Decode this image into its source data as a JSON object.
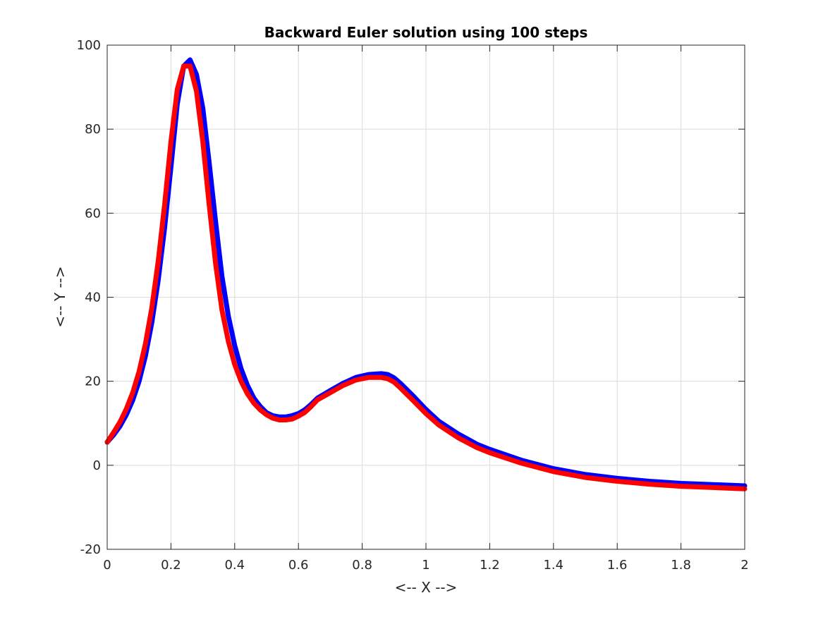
{
  "chart_data": {
    "type": "line",
    "title": "Backward Euler solution using 100 steps",
    "xlabel": "<-- X -->",
    "ylabel": "<-- Y -->",
    "xlim": [
      0,
      2
    ],
    "ylim": [
      -20,
      100
    ],
    "xticks": [
      0,
      0.2,
      0.4,
      0.6,
      0.8,
      1,
      1.2,
      1.4,
      1.6,
      1.8,
      2
    ],
    "xtick_labels": [
      "0",
      "0.2",
      "0.4",
      "0.6",
      "0.8",
      "1",
      "1.2",
      "1.4",
      "1.6",
      "1.8",
      "2"
    ],
    "yticks": [
      -20,
      0,
      20,
      40,
      60,
      80,
      100
    ],
    "ytick_labels": [
      "-20",
      "0",
      "20",
      "40",
      "60",
      "80",
      "100"
    ],
    "grid": true,
    "series": [
      {
        "color": "#0000ff",
        "x": [
          0,
          0.02,
          0.04,
          0.06,
          0.08,
          0.1,
          0.12,
          0.14,
          0.16,
          0.18,
          0.2,
          0.22,
          0.24,
          0.26,
          0.28,
          0.3,
          0.32,
          0.34,
          0.36,
          0.38,
          0.4,
          0.42,
          0.44,
          0.46,
          0.48,
          0.5,
          0.52,
          0.54,
          0.56,
          0.58,
          0.6,
          0.62,
          0.64,
          0.66,
          0.7,
          0.74,
          0.78,
          0.82,
          0.86,
          0.88,
          0.9,
          0.92,
          0.96,
          1.0,
          1.04,
          1.1,
          1.16,
          1.2,
          1.3,
          1.4,
          1.5,
          1.6,
          1.7,
          1.8,
          1.9,
          2.0
        ],
        "y": [
          5.5,
          7.2,
          9.3,
          12.0,
          15.5,
          20.0,
          26.0,
          34.0,
          44.0,
          56.5,
          71.0,
          86.0,
          95.0,
          96.5,
          93.0,
          85.0,
          72.0,
          58.0,
          45.0,
          35.5,
          28.5,
          23.0,
          19.0,
          16.0,
          14.0,
          12.5,
          11.8,
          11.5,
          11.5,
          11.8,
          12.3,
          13.2,
          14.5,
          16.0,
          17.8,
          19.5,
          20.9,
          21.6,
          21.8,
          21.6,
          20.8,
          19.5,
          16.5,
          13.3,
          10.5,
          7.5,
          5.0,
          3.8,
          1.2,
          -0.8,
          -2.2,
          -3.1,
          -3.8,
          -4.3,
          -4.6,
          -4.9
        ]
      },
      {
        "color": "#ff0000",
        "x": [
          0,
          0.02,
          0.04,
          0.06,
          0.08,
          0.1,
          0.12,
          0.14,
          0.16,
          0.18,
          0.2,
          0.22,
          0.24,
          0.26,
          0.28,
          0.3,
          0.32,
          0.34,
          0.36,
          0.38,
          0.4,
          0.42,
          0.44,
          0.46,
          0.48,
          0.5,
          0.52,
          0.54,
          0.56,
          0.58,
          0.6,
          0.62,
          0.64,
          0.66,
          0.7,
          0.74,
          0.78,
          0.82,
          0.86,
          0.88,
          0.9,
          0.92,
          0.96,
          1.0,
          1.04,
          1.1,
          1.16,
          1.2,
          1.3,
          1.4,
          1.5,
          1.6,
          1.7,
          1.8,
          1.9,
          2.0
        ],
        "y": [
          5.5,
          7.8,
          10.3,
          13.4,
          17.3,
          22.3,
          28.9,
          37.5,
          48.5,
          62.0,
          77.0,
          89.5,
          95.0,
          95.0,
          89.0,
          77.0,
          62.0,
          48.0,
          37.0,
          29.5,
          24.0,
          20.0,
          17.0,
          14.8,
          13.2,
          12.0,
          11.2,
          10.8,
          10.8,
          11.0,
          11.7,
          12.6,
          14.0,
          15.6,
          17.3,
          19.0,
          20.3,
          20.9,
          20.9,
          20.6,
          19.8,
          18.4,
          15.4,
          12.3,
          9.6,
          6.6,
          4.2,
          3.0,
          0.5,
          -1.5,
          -2.9,
          -3.8,
          -4.5,
          -5.0,
          -5.3,
          -5.6
        ]
      }
    ]
  }
}
